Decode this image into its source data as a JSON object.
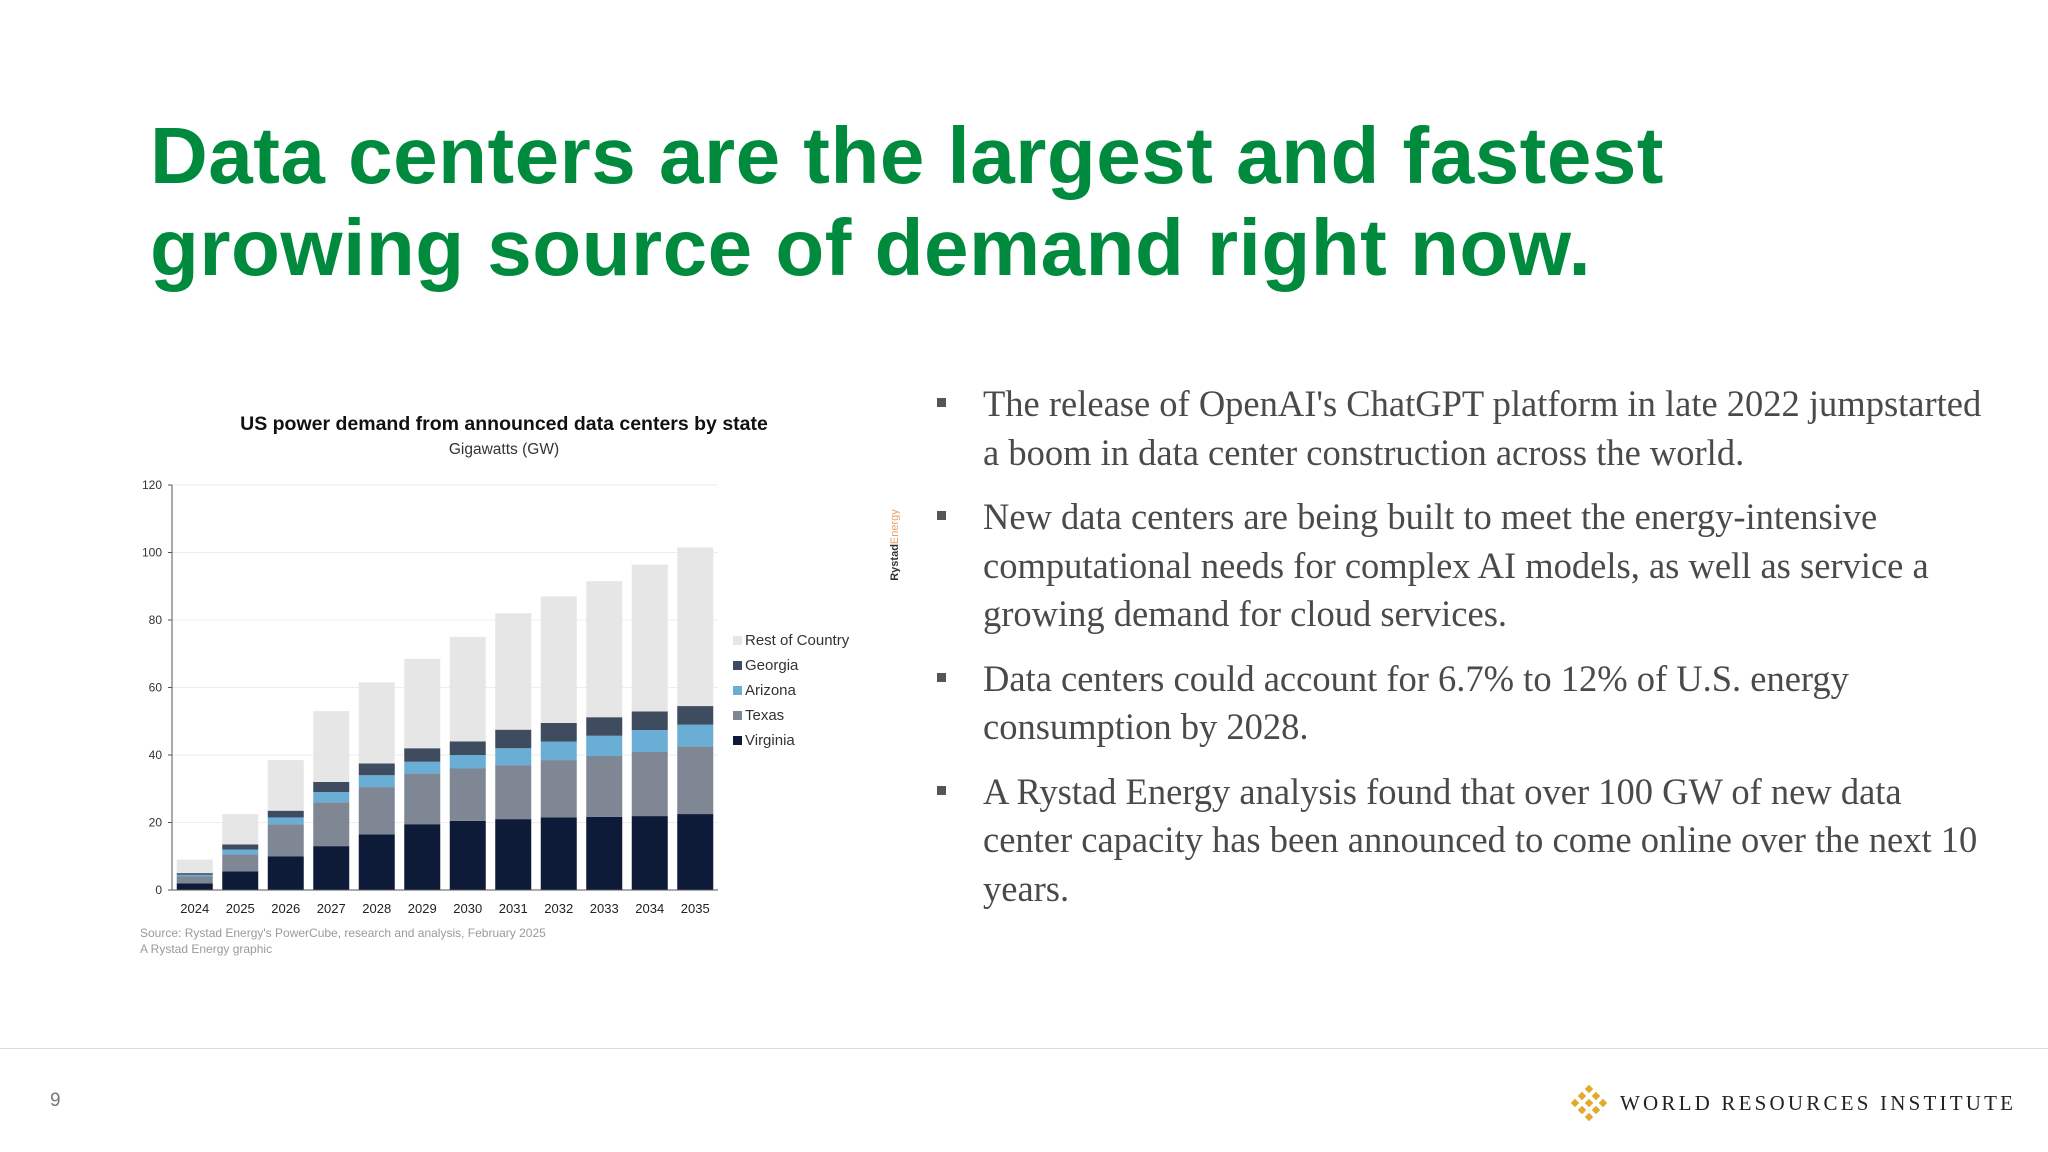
{
  "slide": {
    "title_lines": [
      "Data centers are the largest and fastest",
      "growing source of demand right now."
    ],
    "page_number": "9",
    "logo_text": "WORLD RESOURCES INSTITUTE",
    "logo_icon": "wri-diamond-icon"
  },
  "bullets": [
    "The release of OpenAI's ChatGPT platform in late 2022 jumpstarted a boom in data center construction across the world.",
    "New data centers are being built to meet the energy-intensive computational needs for complex AI models, as well as service a growing demand for cloud services.",
    "Data centers could account for 6.7% to 12% of U.S. energy consumption by 2028.",
    "A Rystad Energy analysis found that over 100 GW of new data center capacity has been announced to come online over the next 10 years."
  ],
  "chart_data": {
    "type": "bar",
    "stacked": true,
    "title": "US power demand from announced data centers by state",
    "subtitle": "Gigawatts (GW)",
    "categories": [
      "2024",
      "2025",
      "2026",
      "2027",
      "2028",
      "2029",
      "2030",
      "2031",
      "2032",
      "2033",
      "2034",
      "2035"
    ],
    "ylim": [
      0,
      120
    ],
    "yticks": [
      0,
      20,
      40,
      60,
      80,
      100,
      120
    ],
    "grid": true,
    "legend_position": "right",
    "series": [
      {
        "name": "Virginia",
        "color": "#0d1a38",
        "values": [
          2,
          5.5,
          10,
          13,
          16.5,
          19.5,
          20.5,
          21,
          21.5,
          21.7,
          21.9,
          22.5
        ]
      },
      {
        "name": "Texas",
        "color": "#7f8795",
        "values": [
          2,
          5,
          9.5,
          13,
          14,
          15,
          15.5,
          16,
          17,
          18,
          19,
          20
        ]
      },
      {
        "name": "Arizona",
        "color": "#6aaed6",
        "values": [
          0.5,
          1.5,
          2,
          3,
          3.5,
          3.5,
          4,
          5,
          5.5,
          6,
          6.5,
          6.5
        ]
      },
      {
        "name": "Georgia",
        "color": "#3f4b5f",
        "values": [
          0.5,
          1.5,
          2,
          3,
          3.5,
          4,
          4,
          5.5,
          5.5,
          5.5,
          5.5,
          5.5
        ]
      },
      {
        "name": "Rest of Country",
        "color": "#e6e6e6",
        "values": [
          4,
          9,
          15,
          21,
          24,
          26.5,
          31,
          34.5,
          37.5,
          40.3,
          43.5,
          47
        ]
      }
    ],
    "source_lines": [
      "Source: Rystad Energy's PowerCube, research and analysis, February 2025",
      "A Rystad Energy graphic"
    ],
    "brand_mark": [
      "Rystad",
      "Energy"
    ]
  }
}
